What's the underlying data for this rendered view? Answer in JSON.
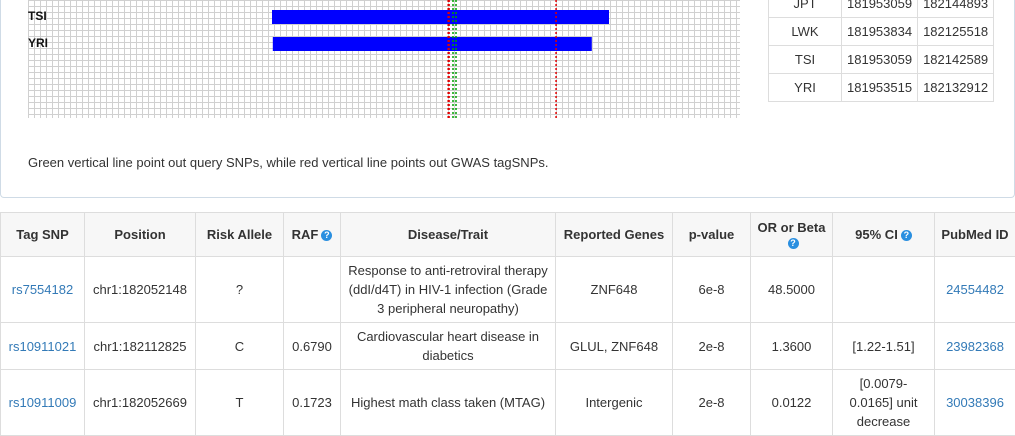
{
  "population_table": {
    "rows": [
      [
        "JPT",
        181953059,
        182144893
      ],
      [
        "LWK",
        181953834,
        182125518
      ],
      [
        "TSI",
        181953059,
        182142589
      ],
      [
        "YRI",
        181953515,
        182132912
      ]
    ]
  },
  "note": "Green vertical line point out query SNPs, while red vertical line points out GWAS tagSNPs.",
  "snp_table": {
    "headers": [
      "Tag SNP",
      "Position",
      "Risk Allele",
      "RAF",
      "Disease/Trait",
      "Reported Genes",
      "p-value",
      "OR or Beta",
      "95% CI",
      "PubMed ID"
    ],
    "rows": [
      [
        "rs7554182",
        "chr1:182052148",
        "?",
        null,
        "Response to anti-retroviral therapy (ddI/d4T) in HIV-1 infection (Grade 3 peripheral neuropathy)",
        "ZNF648",
        "6e-8",
        "48.5000",
        null,
        "24554482"
      ],
      [
        "rs10911021",
        "chr1:182112825",
        "C",
        "0.6790",
        "Cardiovascular heart disease in diabetics",
        "GLUL, ZNF648",
        "2e-8",
        "1.3600",
        "[1.22-1.51]",
        "23982368"
      ],
      [
        "rs10911009",
        "chr1:182052669",
        "T",
        "0.1723",
        "Highest math class taken (MTAG)",
        "Intergenic",
        "2e-8",
        "0.0122",
        "[0.0079-0.0165] unit decrease",
        "30038396"
      ]
    ]
  }
}
